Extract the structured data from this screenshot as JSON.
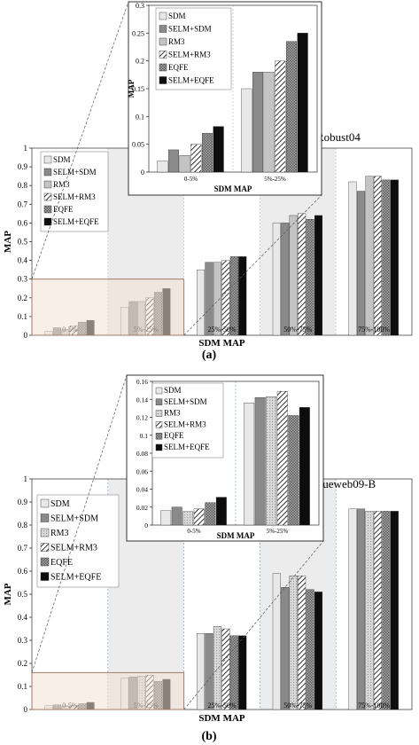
{
  "legend_labels": [
    "SDM",
    "SELM+SDM",
    "RM3",
    "SELM+RM3",
    "EQFE",
    "SELM+EQFE"
  ],
  "colors": {
    "SDM": "#e8e8e8",
    "SELM+SDM": "#8a8a8a",
    "RM3": "#c4c4c4",
    "SELM+RM3": "#ffffff",
    "EQFE": "#7a7a7a",
    "SELM+EQFE": "#0d0d0d",
    "bin_shade": "#ececec",
    "zoom_fill": "#f3e2d6",
    "zoom_border": "#a07a66"
  },
  "panel_a_label": "(a)",
  "panel_b_label": "(b)",
  "chart_data": [
    {
      "type": "bar",
      "title": "Robust04",
      "xlabel": "SDM MAP",
      "ylabel": "MAP",
      "ylim": [
        0,
        1
      ],
      "yticks": [
        "0",
        "0.1",
        "0.2",
        "0.3",
        "0.4",
        "0.5",
        "0.6",
        "0.7",
        "0.8",
        "0.9",
        "1"
      ],
      "categories": [
        "0-5%",
        "5%-25%",
        "25%-50%",
        "50%-75%",
        "75%-100%"
      ],
      "series": [
        {
          "name": "SDM",
          "values": [
            0.02,
            0.15,
            0.35,
            0.6,
            0.82
          ]
        },
        {
          "name": "SELM+SDM",
          "values": [
            0.04,
            0.18,
            0.39,
            0.6,
            0.77
          ]
        },
        {
          "name": "RM3",
          "values": [
            0.03,
            0.18,
            0.39,
            0.64,
            0.85
          ]
        },
        {
          "name": "SELM+RM3",
          "values": [
            0.05,
            0.2,
            0.4,
            0.65,
            0.85
          ]
        },
        {
          "name": "EQFE",
          "values": [
            0.07,
            0.23,
            0.42,
            0.62,
            0.83
          ]
        },
        {
          "name": "SELM+EQFE",
          "values": [
            0.08,
            0.25,
            0.42,
            0.64,
            0.83
          ]
        }
      ],
      "legend": "top-left",
      "grid": false
    },
    {
      "type": "bar",
      "title": "",
      "xlabel": "SDM MAP",
      "ylabel": "MAP",
      "ylim": [
        0,
        0.3
      ],
      "yticks": [
        "0",
        "0.05",
        "0.1",
        "0.15",
        "0.2",
        "0.25",
        "0.3"
      ],
      "categories": [
        "0-5%",
        "5%-25%"
      ],
      "series": [
        {
          "name": "SDM",
          "values": [
            0.02,
            0.15
          ]
        },
        {
          "name": "SELM+SDM",
          "values": [
            0.04,
            0.18
          ]
        },
        {
          "name": "RM3",
          "values": [
            0.03,
            0.18
          ]
        },
        {
          "name": "SELM+RM3",
          "values": [
            0.05,
            0.2
          ]
        },
        {
          "name": "EQFE",
          "values": [
            0.07,
            0.235
          ]
        },
        {
          "name": "SELM+EQFE",
          "values": [
            0.082,
            0.25
          ]
        }
      ],
      "legend": "top-left",
      "grid": false
    },
    {
      "type": "bar",
      "title": "Clueweb09-B",
      "xlabel": "SDM MAP",
      "ylabel": "MAP",
      "ylim": [
        0,
        1
      ],
      "yticks": [
        "0",
        "0.1",
        "0.2",
        "0.3",
        "0.4",
        "0.5",
        "0.6",
        "0.7",
        "0.8",
        "0.9",
        "1"
      ],
      "categories": [
        "0-5%",
        "5%-25%",
        "25%-50%",
        "50%-75%",
        "75%-100%"
      ],
      "series": [
        {
          "name": "SDM",
          "values": [
            0.016,
            0.136,
            0.33,
            0.59,
            0.87
          ]
        },
        {
          "name": "SELM+SDM",
          "values": [
            0.02,
            0.142,
            0.33,
            0.53,
            0.87
          ]
        },
        {
          "name": "RM3",
          "values": [
            0.015,
            0.143,
            0.36,
            0.58,
            0.86
          ]
        },
        {
          "name": "SELM+RM3",
          "values": [
            0.018,
            0.149,
            0.35,
            0.58,
            0.86
          ]
        },
        {
          "name": "EQFE",
          "values": [
            0.025,
            0.122,
            0.32,
            0.52,
            0.86
          ]
        },
        {
          "name": "SELM+EQFE",
          "values": [
            0.031,
            0.131,
            0.32,
            0.51,
            0.86
          ]
        }
      ],
      "legend": "top-left",
      "grid": false
    },
    {
      "type": "bar",
      "title": "",
      "xlabel": "SDM MAP",
      "ylabel": "MAP",
      "ylim": [
        0,
        0.16
      ],
      "yticks": [
        "0",
        "0.02",
        "0.04",
        "0.06",
        "0.08",
        "0.1",
        "0.12",
        "0.14",
        "0.16"
      ],
      "categories": [
        "0-5%",
        "5%-25%"
      ],
      "series": [
        {
          "name": "SDM",
          "values": [
            0.016,
            0.136
          ]
        },
        {
          "name": "SELM+SDM",
          "values": [
            0.02,
            0.142
          ]
        },
        {
          "name": "RM3",
          "values": [
            0.015,
            0.143
          ]
        },
        {
          "name": "SELM+RM3",
          "values": [
            0.018,
            0.149
          ]
        },
        {
          "name": "EQFE",
          "values": [
            0.025,
            0.122
          ]
        },
        {
          "name": "SELM+EQFE",
          "values": [
            0.031,
            0.131
          ]
        }
      ],
      "legend": "top-left",
      "grid": false
    }
  ]
}
